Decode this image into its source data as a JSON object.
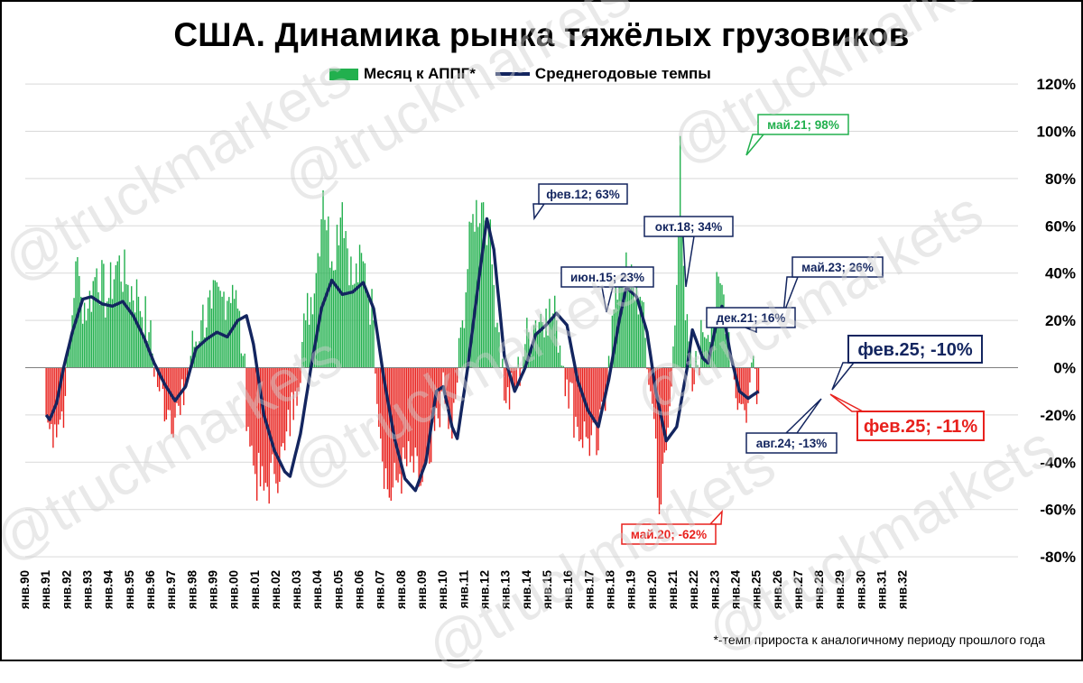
{
  "title": "США. Динамика рынка тяжёлых грузовиков",
  "legend": {
    "bars": "Месяц к АППГ*",
    "line": "Среднегодовые темпы"
  },
  "footnote": "*-темп прироста к аналогичному периоду прошлого года",
  "watermark": "@truckmarkets",
  "colors": {
    "bar_positive": "#22b04e",
    "bar_negative": "#e8211d",
    "line": "#13255f",
    "label_green": "#22b04e",
    "label_red": "#e8211d",
    "label_navy": "#13255f"
  },
  "chart_data": {
    "type": "bar+line",
    "x_tick_labels": [
      "янв.90",
      "янв.91",
      "янв.92",
      "янв.93",
      "янв.94",
      "янв.95",
      "янв.96",
      "янв.97",
      "янв.98",
      "янв.99",
      "янв.00",
      "янв.01",
      "янв.02",
      "янв.03",
      "янв.04",
      "янв.05",
      "янв.06",
      "янв.07",
      "янв.08",
      "янв.09",
      "янв.10",
      "янв.11",
      "янв.12",
      "янв.13",
      "янв.14",
      "янв.15",
      "янв.16",
      "янв.17",
      "янв.18",
      "янв.19",
      "янв.20",
      "янв.21",
      "янв.22",
      "янв.23",
      "янв.24",
      "янв.25",
      "янв.26",
      "янв.27",
      "янв.28",
      "янв.29",
      "янв.30",
      "янв.31",
      "янв.32"
    ],
    "y_tick_labels": [
      "120%",
      "100%",
      "80%",
      "60%",
      "40%",
      "20%",
      "0%",
      "-20%",
      "-40%",
      "-60%",
      "-80%"
    ],
    "y_ticks": [
      120,
      100,
      80,
      60,
      40,
      20,
      0,
      -20,
      -40,
      -60,
      -80
    ],
    "ylim": [
      -80,
      120
    ],
    "x_range": [
      "1990-01",
      "2032-12"
    ],
    "grid": true,
    "legend_position": "top",
    "bars_name": "Месяц к АППГ*",
    "bars_keyframes": [
      [
        "1991-01",
        -20
      ],
      [
        "1991-03",
        -26
      ],
      [
        "1991-06",
        -24
      ],
      [
        "1991-09",
        -22
      ],
      [
        "1991-12",
        -12
      ],
      [
        "1992-03",
        14
      ],
      [
        "1992-06",
        45
      ],
      [
        "1992-09",
        30
      ],
      [
        "1993-01",
        25
      ],
      [
        "1993-06",
        42
      ],
      [
        "1993-12",
        28
      ],
      [
        "1994-06",
        45
      ],
      [
        "1994-12",
        35
      ],
      [
        "1995-06",
        30
      ],
      [
        "1995-12",
        15
      ],
      [
        "1996-06",
        -10
      ],
      [
        "1996-12",
        -18
      ],
      [
        "1997-06",
        -20
      ],
      [
        "1997-12",
        5
      ],
      [
        "1998-06",
        20
      ],
      [
        "1998-12",
        25
      ],
      [
        "1999-06",
        30
      ],
      [
        "1999-12",
        35
      ],
      [
        "2000-03",
        25
      ],
      [
        "2000-06",
        5
      ],
      [
        "2000-09",
        -25
      ],
      [
        "2001-01",
        -45
      ],
      [
        "2001-06",
        -52
      ],
      [
        "2001-12",
        -45
      ],
      [
        "2002-06",
        -35
      ],
      [
        "2002-12",
        -10
      ],
      [
        "2003-06",
        20
      ],
      [
        "2003-12",
        40
      ],
      [
        "2004-04",
        75
      ],
      [
        "2004-09",
        45
      ],
      [
        "2005-03",
        70
      ],
      [
        "2005-09",
        35
      ],
      [
        "2006-03",
        45
      ],
      [
        "2006-09",
        20
      ],
      [
        "2007-01",
        -30
      ],
      [
        "2007-06",
        -55
      ],
      [
        "2007-12",
        -45
      ],
      [
        "2008-06",
        -40
      ],
      [
        "2008-12",
        -50
      ],
      [
        "2009-06",
        -40
      ],
      [
        "2009-12",
        -10
      ],
      [
        "2010-06",
        -30
      ],
      [
        "2010-12",
        20
      ],
      [
        "2011-06",
        65
      ],
      [
        "2011-12",
        70
      ],
      [
        "2012-03",
        60
      ],
      [
        "2012-06",
        35
      ],
      [
        "2012-09",
        15
      ],
      [
        "2013-01",
        -15
      ],
      [
        "2013-06",
        -10
      ],
      [
        "2013-12",
        10
      ],
      [
        "2014-06",
        20
      ],
      [
        "2014-12",
        25
      ],
      [
        "2015-06",
        20
      ],
      [
        "2015-12",
        -5
      ],
      [
        "2016-06",
        -25
      ],
      [
        "2016-12",
        -30
      ],
      [
        "2017-06",
        -35
      ],
      [
        "2017-12",
        5
      ],
      [
        "2018-06",
        40
      ],
      [
        "2018-12",
        38
      ],
      [
        "2019-06",
        30
      ],
      [
        "2019-12",
        -10
      ],
      [
        "2020-03",
        -30
      ],
      [
        "2020-05",
        -62
      ],
      [
        "2020-09",
        -35
      ],
      [
        "2020-12",
        -8
      ],
      [
        "2021-03",
        35
      ],
      [
        "2021-05",
        98
      ],
      [
        "2021-08",
        20
      ],
      [
        "2021-12",
        -10
      ],
      [
        "2022-06",
        15
      ],
      [
        "2022-12",
        25
      ],
      [
        "2023-05",
        35
      ],
      [
        "2023-09",
        15
      ],
      [
        "2023-12",
        -5
      ],
      [
        "2024-03",
        -15
      ],
      [
        "2024-06",
        -18
      ],
      [
        "2024-08",
        -15
      ],
      [
        "2024-11",
        5
      ],
      [
        "2025-02",
        -11
      ]
    ],
    "line_name": "Среднегодовые темпы",
    "line_keyframes": [
      [
        "1991-01",
        -20
      ],
      [
        "1991-03",
        -22
      ],
      [
        "1991-07",
        -15
      ],
      [
        "1991-11",
        0
      ],
      [
        "1992-04",
        15
      ],
      [
        "1992-10",
        29
      ],
      [
        "1993-03",
        30
      ],
      [
        "1993-09",
        27
      ],
      [
        "1994-03",
        26
      ],
      [
        "1994-09",
        28
      ],
      [
        "1995-03",
        22
      ],
      [
        "1995-09",
        13
      ],
      [
        "1996-03",
        2
      ],
      [
        "1996-09",
        -7
      ],
      [
        "1997-03",
        -14
      ],
      [
        "1997-09",
        -8
      ],
      [
        "1998-03",
        8
      ],
      [
        "1998-09",
        12
      ],
      [
        "1999-03",
        15
      ],
      [
        "1999-09",
        13
      ],
      [
        "2000-03",
        20
      ],
      [
        "2000-08",
        22
      ],
      [
        "2000-12",
        10
      ],
      [
        "2001-06",
        -20
      ],
      [
        "2001-12",
        -35
      ],
      [
        "2002-06",
        -44
      ],
      [
        "2002-09",
        -46
      ],
      [
        "2003-03",
        -28
      ],
      [
        "2003-09",
        0
      ],
      [
        "2004-03",
        25
      ],
      [
        "2004-09",
        37
      ],
      [
        "2005-03",
        31
      ],
      [
        "2005-09",
        32
      ],
      [
        "2006-03",
        36
      ],
      [
        "2006-09",
        25
      ],
      [
        "2007-03",
        -5
      ],
      [
        "2007-09",
        -30
      ],
      [
        "2008-03",
        -47
      ],
      [
        "2008-09",
        -52
      ],
      [
        "2009-03",
        -40
      ],
      [
        "2009-09",
        -10
      ],
      [
        "2010-01",
        -8
      ],
      [
        "2010-06",
        -25
      ],
      [
        "2010-09",
        -30
      ],
      [
        "2011-03",
        0
      ],
      [
        "2011-09",
        35
      ],
      [
        "2012-02",
        63
      ],
      [
        "2012-06",
        50
      ],
      [
        "2012-12",
        5
      ],
      [
        "2013-06",
        -10
      ],
      [
        "2013-12",
        0
      ],
      [
        "2014-06",
        14
      ],
      [
        "2014-12",
        18
      ],
      [
        "2015-06",
        23
      ],
      [
        "2015-12",
        18
      ],
      [
        "2016-06",
        -5
      ],
      [
        "2016-12",
        -18
      ],
      [
        "2017-06",
        -25
      ],
      [
        "2017-12",
        -5
      ],
      [
        "2018-06",
        20
      ],
      [
        "2018-10",
        34
      ],
      [
        "2019-04",
        30
      ],
      [
        "2019-10",
        15
      ],
      [
        "2020-03",
        -10
      ],
      [
        "2020-09",
        -31
      ],
      [
        "2021-03",
        -25
      ],
      [
        "2021-09",
        0
      ],
      [
        "2021-12",
        16
      ],
      [
        "2022-06",
        4
      ],
      [
        "2022-09",
        2
      ],
      [
        "2023-01",
        16
      ],
      [
        "2023-05",
        26
      ],
      [
        "2023-10",
        5
      ],
      [
        "2024-03",
        -10
      ],
      [
        "2024-08",
        -13
      ],
      [
        "2025-02",
        -10
      ]
    ],
    "annotations": [
      {
        "text": "май.21; 98%",
        "color": "green",
        "date": "2021-05",
        "value": 98
      },
      {
        "text": "фев.12; 63%",
        "color": "navy",
        "date": "2012-02",
        "value": 63
      },
      {
        "text": "окт.18; 34%",
        "color": "navy",
        "date": "2018-10",
        "value": 34
      },
      {
        "text": "июн.15; 23%",
        "color": "navy",
        "date": "2015-06",
        "value": 23
      },
      {
        "text": "май.23; 26%",
        "color": "navy",
        "date": "2023-05",
        "value": 26
      },
      {
        "text": "дек.21; 16%",
        "color": "navy",
        "date": "2021-12",
        "value": 16
      },
      {
        "text": "фев.25; -10%",
        "color": "navy",
        "date": "2025-02",
        "value": -10,
        "large": true
      },
      {
        "text": "фев.25; -11%",
        "color": "red",
        "date": "2025-02",
        "value": -11,
        "large": true
      },
      {
        "text": "авг.24; -13%",
        "color": "navy",
        "date": "2024-08",
        "value": -13
      },
      {
        "text": "май.20; -62%",
        "color": "red",
        "date": "2020-05",
        "value": -62
      }
    ]
  }
}
